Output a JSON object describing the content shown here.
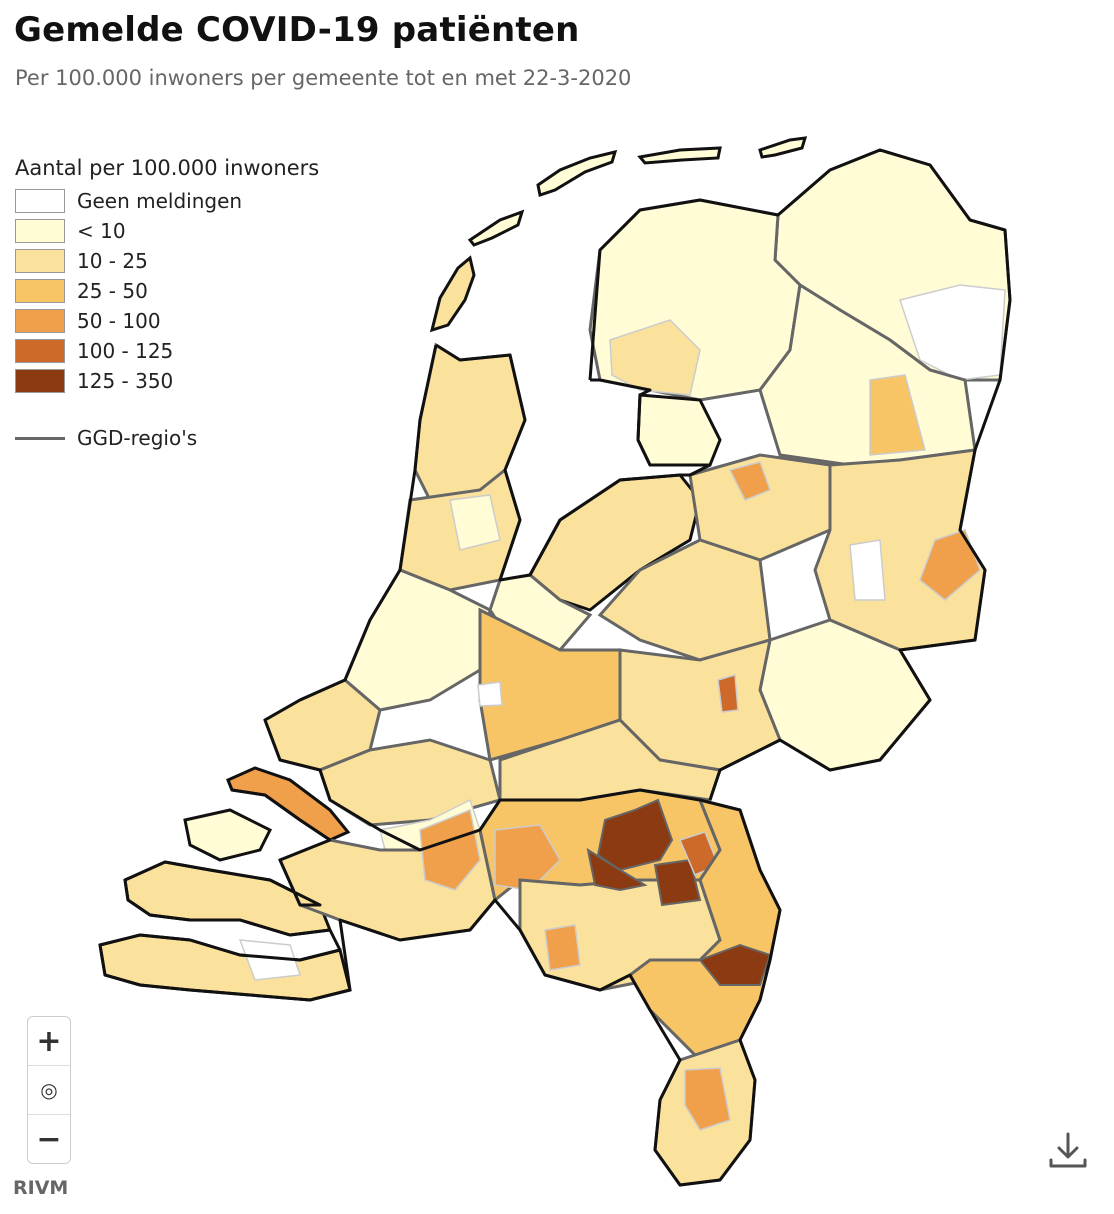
{
  "title": "Gemelde COVID-19 patiënten",
  "subtitle": "Per 100.000 inwoners per gemeente tot en met 22-3-2020",
  "legend": {
    "title": "Aantal per 100.000 inwoners",
    "items": [
      {
        "label": "Geen meldingen",
        "color": "#ffffff"
      },
      {
        "label": "< 10",
        "color": "#fffcd6"
      },
      {
        "label": "10 - 25",
        "color": "#fbe29c"
      },
      {
        "label": "25 - 50",
        "color": "#f7c565"
      },
      {
        "label": "50 - 100",
        "color": "#f0a04a"
      },
      {
        "label": "100 - 125",
        "color": "#cd6a2a"
      },
      {
        "label": "125 - 350",
        "color": "#8c3a12"
      }
    ],
    "boundary_label": "GGD-regio's",
    "boundary_color": "#666666"
  },
  "map": {
    "country_outline_color": "#111111",
    "icons": [
      "zoom-in-icon",
      "reset-view-icon",
      "zoom-out-icon",
      "download-icon"
    ]
  },
  "zoom": {
    "in": "+",
    "reset": "◎",
    "out": "−"
  },
  "credit": "RIVM"
}
